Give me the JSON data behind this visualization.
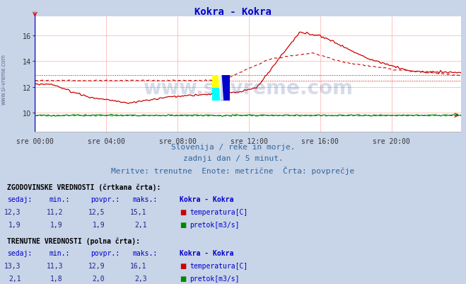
{
  "title": "Kokra - Kokra",
  "title_color": "#0000cc",
  "bg_color": "#c8d4e8",
  "plot_bg_color": "#ffffff",
  "xlabel_ticks": [
    "sre 00:00",
    "sre 04:00",
    "sre 08:00",
    "sre 12:00",
    "sre 16:00",
    "sre 20:00"
  ],
  "ylabel_ticks": [
    10,
    12,
    14,
    16
  ],
  "ylim_temp": [
    8.5,
    17.5
  ],
  "xlim": [
    0,
    287
  ],
  "grid_color": "#ffaaaa",
  "grid_vcolor": "#ffcccc",
  "watermark_text": "www.si-vreme.com",
  "watermark_color": "#1a3a8a",
  "watermark_alpha": 0.18,
  "subtitle1": "Slovenija / reke in morje.",
  "subtitle2": "zadnji dan / 5 minut.",
  "subtitle3": "Meritve: trenutne  Enote: metrične  Črta: povprečje",
  "subtitle_color": "#336699",
  "temp_color": "#cc0000",
  "flow_color": "#008800",
  "flow_color2": "#22aa22",
  "table_header_color": "#000000",
  "table_label_color": "#0000cc",
  "table_value_color": "#222288",
  "hist_sedaj": "12,3",
  "hist_min": "11,2",
  "hist_povpr": "12,5",
  "hist_maks": "15,1",
  "hist_flow_sedaj": "1,9",
  "hist_flow_min": "1,9",
  "hist_flow_povpr": "1,9",
  "hist_flow_maks": "2,1",
  "curr_sedaj": "13,3",
  "curr_min": "11,3",
  "curr_povpr": "12,9",
  "curr_maks": "16,1",
  "curr_flow_sedaj": "2,1",
  "curr_flow_min": "1,8",
  "curr_flow_povpr": "2,0",
  "curr_flow_maks": "2,3",
  "avg_temp_hist": 12.5,
  "avg_temp_curr": 12.9,
  "avg_flow_hist": 1.9,
  "avg_flow_curr": 2.0
}
